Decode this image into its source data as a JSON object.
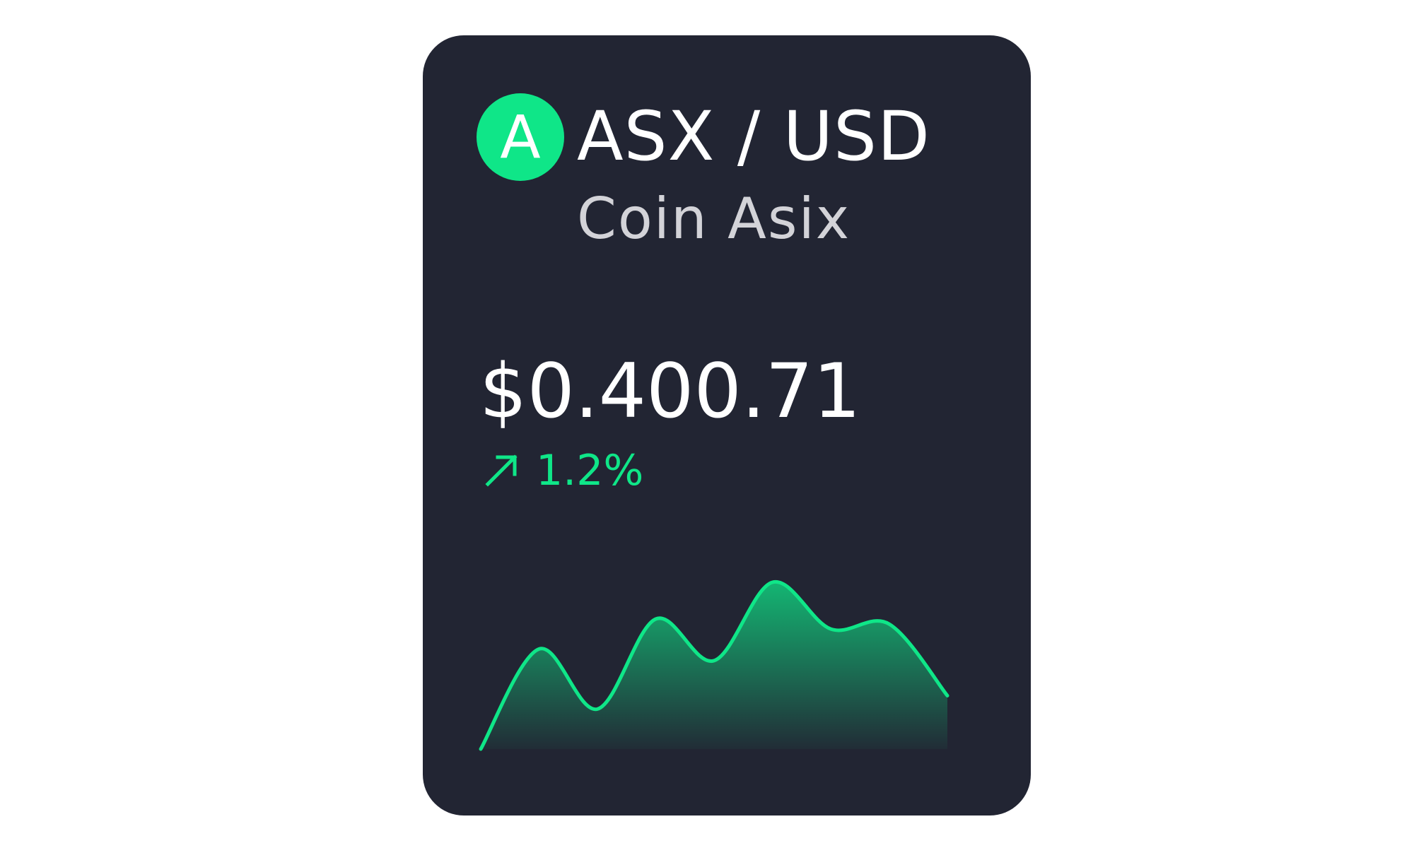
{
  "card": {
    "logo_letter": "A",
    "pair": "ASX / USD",
    "coin_name": "Coin Asix",
    "price": "$0.400.71",
    "change": "1.2%",
    "trend": "up"
  },
  "colors": {
    "card_bg": "#222533",
    "accent": "#0fe688",
    "primary_text": "#ffffff",
    "secondary_text": "#d3d3d8"
  },
  "icons": {
    "logo": "coin-logo-icon",
    "trend": "arrow-up-right-icon"
  },
  "sparkline": {
    "values": [
      0,
      0.6,
      0.24,
      0.78,
      0.53,
      1,
      0.72,
      0.75,
      0.32
    ]
  }
}
